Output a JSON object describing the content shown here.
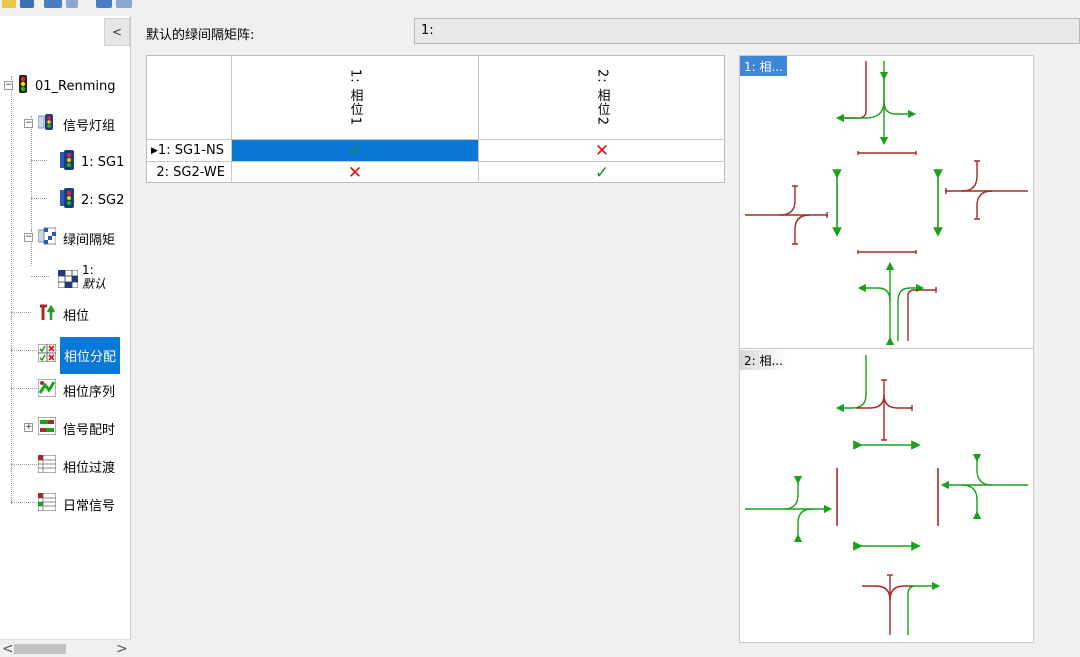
{
  "window": {
    "collapse_label": "<"
  },
  "tree": {
    "root": "01_Renming",
    "signal_groups": "信号灯组",
    "sg1": "1: SG1",
    "sg2": "2: SG2",
    "intergreen": "绿间隔矩",
    "intergreen_child_num": "1:",
    "intergreen_child_name": "默认",
    "phases": "相位",
    "phase_allocation": "相位分配",
    "phase_sequence": "相位序列",
    "signal_timing": "信号配时",
    "phase_transition": "相位过渡",
    "daily_signal": "日常信号",
    "scroll_left": "<",
    "scroll_right": ">"
  },
  "header": {
    "label": "默认的绿间隔矩阵:",
    "value": "1:"
  },
  "matrix": {
    "columns": [
      "1: 相位1",
      "2: 相位2"
    ],
    "rows": [
      {
        "label": "1: SG1-NS",
        "marker": "▶",
        "cells": [
          "ok",
          "no"
        ]
      },
      {
        "label": "2: SG2-WE",
        "marker": "",
        "cells": [
          "no",
          "ok"
        ]
      }
    ],
    "ok_symbol": "✓",
    "no_symbol": "✕"
  },
  "diagrams": [
    {
      "title": "1: 相..."
    },
    {
      "title": "2: 相..."
    }
  ],
  "colors": {
    "selection": "#0a78d7",
    "green_signal": "#1aa21a",
    "red_signal": "#a52828"
  }
}
